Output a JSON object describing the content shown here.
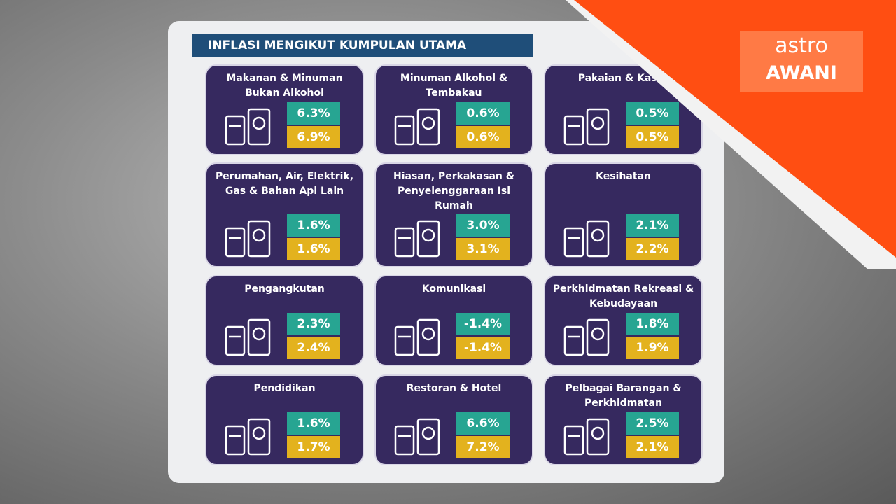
{
  "header": {
    "title": "INFLASI MENGIKUT KUMPULAN UTAMA"
  },
  "logo": {
    "line1": "astro",
    "line2": "AWANI"
  },
  "cards": [
    {
      "title": "Makanan & Minuman Bukan Alkohol",
      "value1": "6.3%",
      "value2": "6.9%"
    },
    {
      "title": "Minuman Alkohol & Tembakau",
      "value1": "0.6%",
      "value2": "0.6%"
    },
    {
      "title": "Pakaian & Kasut",
      "value1": "0.5%",
      "value2": "0.5%"
    },
    {
      "title": "Perumahan, Air, Elektrik, Gas & Bahan Api Lain",
      "value1": "1.6%",
      "value2": "1.6%"
    },
    {
      "title": "Hiasan, Perkakasan & Penyelenggaraan Isi Rumah",
      "value1": "3.0%",
      "value2": "3.1%"
    },
    {
      "title": "Kesihatan",
      "value1": "2.1%",
      "value2": "2.2%"
    },
    {
      "title": "Pengangkutan",
      "value1": "2.3%",
      "value2": "2.4%"
    },
    {
      "title": "Komunikasi",
      "value1": "-1.4%",
      "value2": "-1.4%"
    },
    {
      "title": "Perkhidmatan Rekreasi & Kebudayaan",
      "value1": "1.8%",
      "value2": "1.9%"
    },
    {
      "title": "Pendidikan",
      "value1": "1.6%",
      "value2": "1.7%"
    },
    {
      "title": "Restoran & Hotel",
      "value1": "6.6%",
      "value2": "7.2%"
    },
    {
      "title": "Pelbagai Barangan & Perkhidmatan",
      "value1": "2.5%",
      "value2": "2.1%"
    }
  ]
}
